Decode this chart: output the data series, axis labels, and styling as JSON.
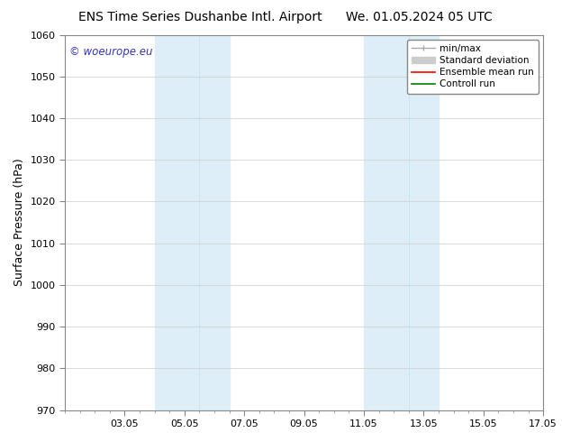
{
  "title_left": "ENS Time Series Dushanbe Intl. Airport",
  "title_right": "We. 01.05.2024 05 UTC",
  "ylabel": "Surface Pressure (hPa)",
  "ylim": [
    970,
    1060
  ],
  "yticks": [
    970,
    980,
    990,
    1000,
    1010,
    1020,
    1030,
    1040,
    1050,
    1060
  ],
  "xtick_positions": [
    2,
    4,
    6,
    8,
    10,
    12,
    14,
    16
  ],
  "xtick_labels": [
    "03.05",
    "05.05",
    "07.05",
    "09.05",
    "11.05",
    "13.05",
    "15.05",
    "17.05"
  ],
  "xlim": [
    0,
    16
  ],
  "watermark": "© woeurope.eu",
  "watermark_color": "#3333bb",
  "bg_color": "#ffffff",
  "plot_bg_color": "#ffffff",
  "shaded_bands": [
    {
      "x_start": 3.0,
      "x_end": 3.5,
      "color": "#ddeef8"
    },
    {
      "x_start": 3.5,
      "x_end": 5.5,
      "color": "#ddeef8"
    },
    {
      "x_start": 10.0,
      "x_end": 10.5,
      "color": "#ddeef8"
    },
    {
      "x_start": 10.5,
      "x_end": 12.5,
      "color": "#ddeef8"
    }
  ],
  "legend_entries": [
    {
      "label": "min/max",
      "color": "#aaaaaa",
      "lw": 1.0
    },
    {
      "label": "Standard deviation",
      "color": "#cccccc",
      "lw": 8
    },
    {
      "label": "Ensemble mean run",
      "color": "#ff0000",
      "lw": 1.2
    },
    {
      "label": "Controll run",
      "color": "#008000",
      "lw": 1.2
    }
  ],
  "title_fontsize": 10,
  "tick_fontsize": 8,
  "label_fontsize": 9,
  "minor_xtick_interval": 1
}
